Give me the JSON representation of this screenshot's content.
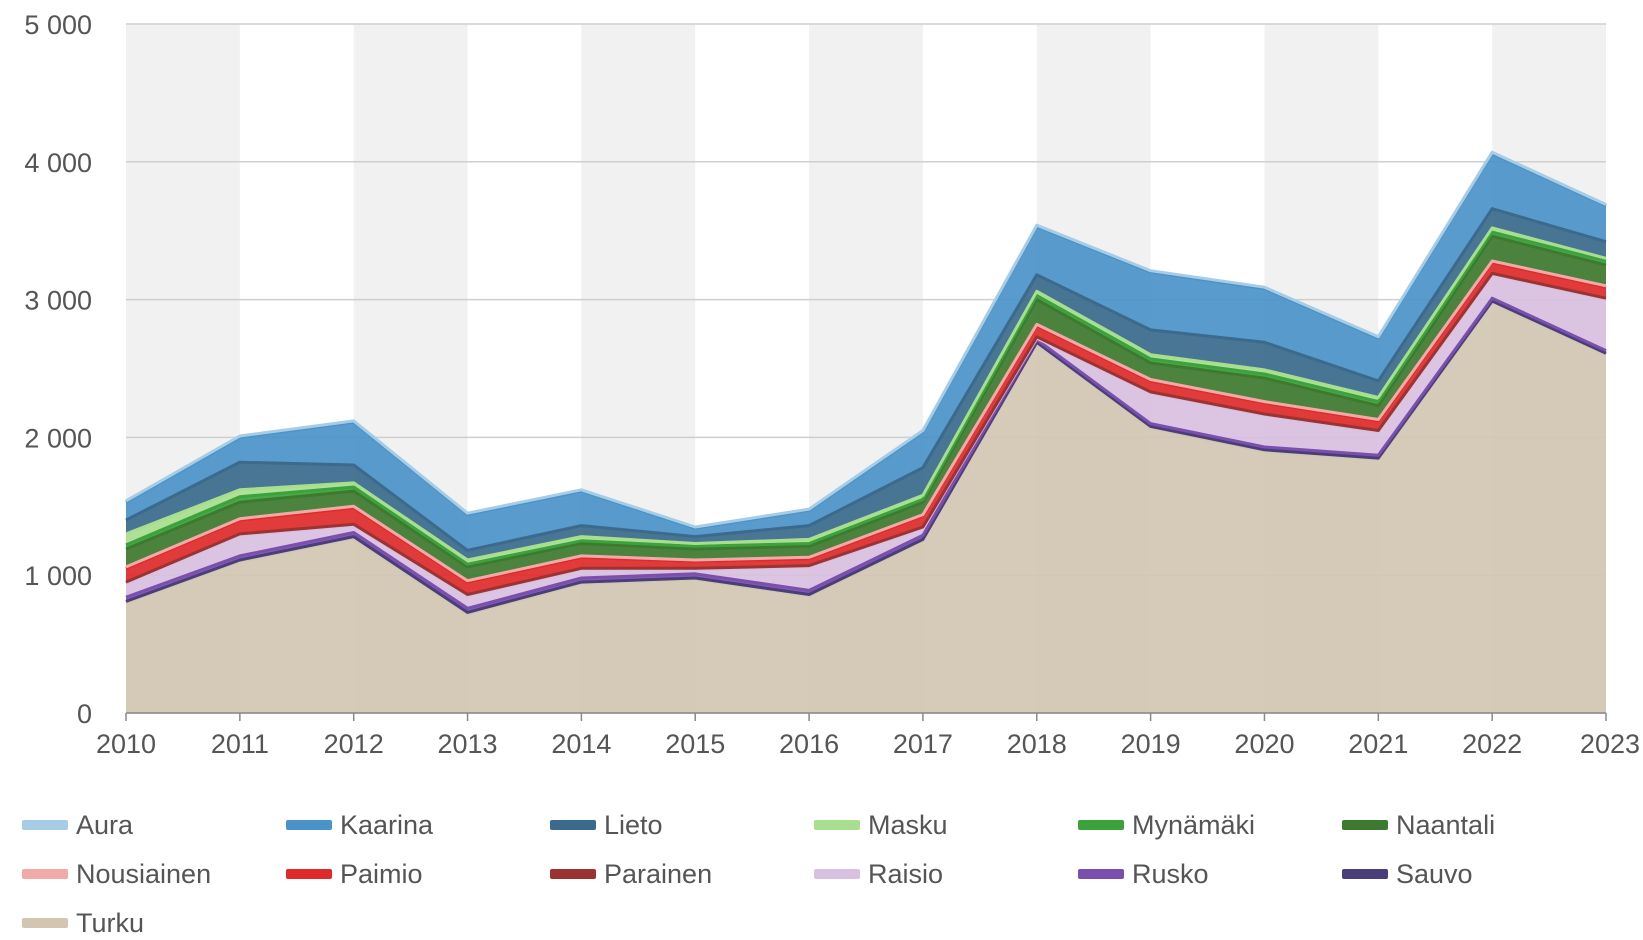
{
  "chart_data": {
    "type": "area",
    "stacked": true,
    "title": "",
    "xlabel": "",
    "ylabel": "",
    "x": [
      2010,
      2011,
      2012,
      2013,
      2014,
      2015,
      2016,
      2017,
      2018,
      2019,
      2020,
      2021,
      2022,
      2023
    ],
    "ylim": [
      0,
      5000
    ],
    "yticks": [
      0,
      1000,
      2000,
      3000,
      4000,
      5000
    ],
    "ytick_labels": [
      "0",
      "1 000",
      "2 000",
      "3 000",
      "4 000",
      "5 000"
    ],
    "grid": "horizontal",
    "alternating_column_bands": true,
    "legend_position": "bottom",
    "series": [
      {
        "name": "Turku",
        "color": "#d2c6b2",
        "values": [
          800,
          1100,
          1270,
          720,
          940,
          970,
          850,
          1250,
          2680,
          2070,
          1900,
          1840,
          2980,
          2600
        ]
      },
      {
        "name": "Sauvo",
        "color": "#4a3e7a",
        "values": [
          10,
          10,
          10,
          10,
          10,
          10,
          10,
          10,
          10,
          10,
          10,
          10,
          10,
          10
        ]
      },
      {
        "name": "Rusko",
        "color": "#7b4fae",
        "values": [
          30,
          30,
          30,
          30,
          30,
          30,
          30,
          30,
          20,
          20,
          20,
          20,
          20,
          20
        ]
      },
      {
        "name": "Raisio",
        "color": "#d8c0e0",
        "values": [
          100,
          150,
          50,
          90,
          60,
          30,
          170,
          50,
          10,
          220,
          230,
          170,
          170,
          370
        ]
      },
      {
        "name": "Parainen",
        "color": "#9c3333",
        "values": [
          10,
          10,
          10,
          10,
          10,
          10,
          10,
          10,
          10,
          10,
          10,
          10,
          10,
          10
        ]
      },
      {
        "name": "Paimio",
        "color": "#e02a2a",
        "values": [
          100,
          100,
          120,
          90,
          80,
          50,
          50,
          80,
          80,
          80,
          80,
          70,
          80,
          80
        ]
      },
      {
        "name": "Nousiainen",
        "color": "#f4a9a9",
        "values": [
          10,
          10,
          10,
          10,
          10,
          10,
          10,
          10,
          10,
          10,
          10,
          10,
          10,
          10
        ]
      },
      {
        "name": "Naantali",
        "color": "#3d7a2f",
        "values": [
          130,
          120,
          110,
          100,
          90,
          80,
          80,
          90,
          180,
          120,
          170,
          100,
          180,
          150
        ]
      },
      {
        "name": "Mynämäki",
        "color": "#3ca23c",
        "values": [
          30,
          40,
          30,
          20,
          20,
          20,
          20,
          20,
          30,
          30,
          30,
          30,
          30,
          30
        ]
      },
      {
        "name": "Masku",
        "color": "#a8df8f",
        "values": [
          80,
          50,
          30,
          30,
          30,
          20,
          30,
          30,
          30,
          30,
          30,
          30,
          30,
          20
        ]
      },
      {
        "name": "Lieto",
        "color": "#3b6a8c",
        "values": [
          100,
          200,
          130,
          70,
          80,
          50,
          100,
          200,
          120,
          180,
          200,
          120,
          140,
          120
        ]
      },
      {
        "name": "Kaarina",
        "color": "#4a93c8",
        "values": [
          130,
          180,
          310,
          260,
          250,
          60,
          110,
          260,
          350,
          420,
          390,
          310,
          400,
          260
        ]
      },
      {
        "name": "Aura",
        "color": "#a7cde6",
        "values": [
          10,
          10,
          10,
          10,
          10,
          10,
          10,
          10,
          10,
          10,
          10,
          10,
          10,
          10
        ]
      }
    ],
    "legend": [
      "Aura",
      "Kaarina",
      "Lieto",
      "Masku",
      "Mynämäki",
      "Naantali",
      "Nousiainen",
      "Paimio",
      "Parainen",
      "Raisio",
      "Rusko",
      "Sauvo",
      "Turku"
    ]
  }
}
